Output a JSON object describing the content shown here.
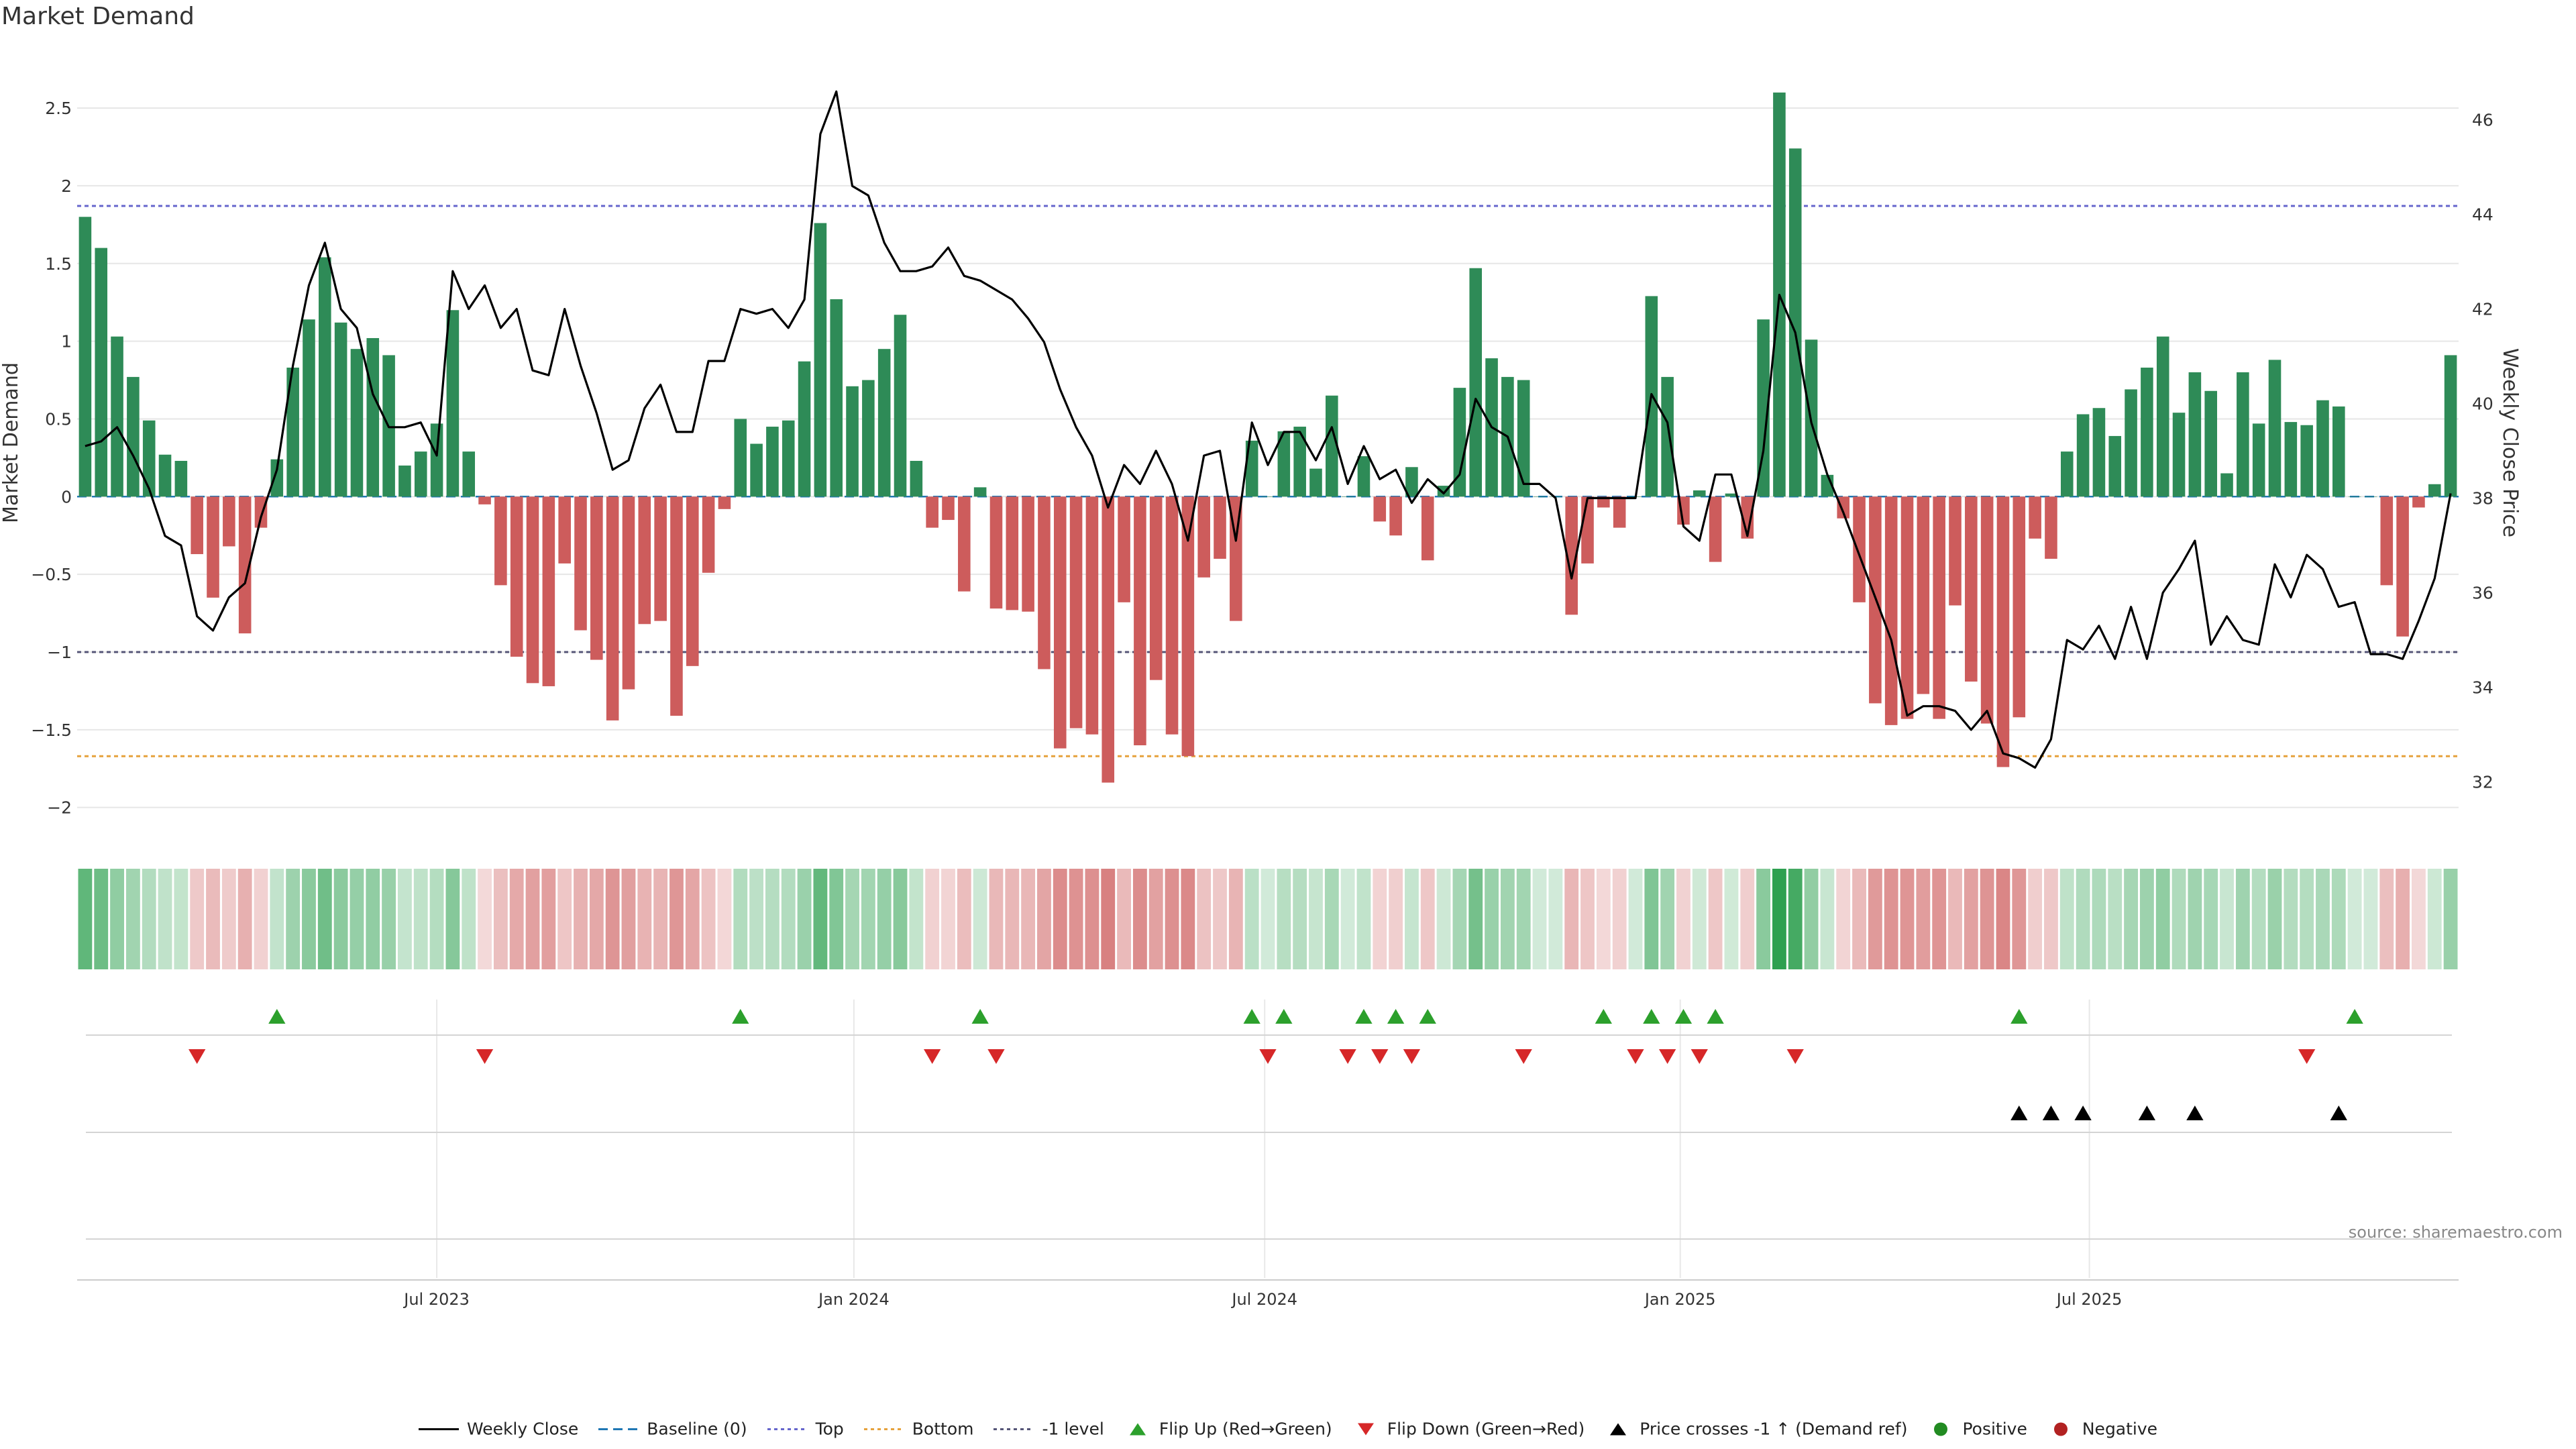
{
  "chart_data": {
    "type": "bar",
    "title": "Market Demand",
    "ylabel": "Market Demand",
    "y2label": "Weekly Close Price",
    "ylim": [
      -2.2,
      2.85
    ],
    "y2lim": [
      30.8,
      47.4
    ],
    "yticks": [
      "2.5",
      "2",
      "1.5",
      "1",
      "0.5",
      "0",
      "−0.5",
      "−1",
      "−1.5",
      "−2"
    ],
    "y2ticks": [
      "46",
      "44",
      "42",
      "40",
      "38",
      "36",
      "34",
      "32"
    ],
    "xticks": [
      "Jul 2023",
      "Jan 2024",
      "Jul 2024",
      "Jan 2025",
      "Jul 2025"
    ],
    "levels": {
      "top": 1.87,
      "bottom": -1.67,
      "minus_one": -1.0,
      "baseline": 0
    },
    "series": [
      {
        "name": "Market Demand",
        "values": [
          1.8,
          1.6,
          1.03,
          0.77,
          0.49,
          0.27,
          0.23,
          -0.37,
          -0.65,
          -0.32,
          -0.88,
          -0.2,
          0.24,
          0.83,
          1.14,
          1.54,
          1.12,
          0.95,
          1.02,
          0.91,
          0.2,
          0.29,
          0.47,
          1.2,
          0.29,
          -0.05,
          -0.57,
          -1.03,
          -1.2,
          -1.22,
          -0.43,
          -0.86,
          -1.05,
          -1.44,
          -1.24,
          -0.82,
          -0.8,
          -1.41,
          -1.09,
          -0.49,
          -0.08,
          0.5,
          0.34,
          0.45,
          0.49,
          0.87,
          1.76,
          1.27,
          0.71,
          0.75,
          0.95,
          1.17,
          0.23,
          -0.2,
          -0.15,
          -0.61,
          0.06,
          -0.72,
          -0.73,
          -0.74,
          -1.11,
          -1.62,
          -1.49,
          -1.53,
          -1.84,
          -0.68,
          -1.6,
          -1.18,
          -1.53,
          -1.67,
          -0.52,
          -0.4,
          -0.8,
          0.36,
          0.0,
          0.42,
          0.45,
          0.18,
          0.65,
          0.0,
          0.26,
          -0.16,
          -0.25,
          0.19,
          -0.41,
          0.07,
          0.7,
          1.47,
          0.89,
          0.77,
          0.75,
          0.0,
          0.0,
          -0.76,
          -0.43,
          -0.07,
          -0.2,
          0.0,
          1.29,
          0.77,
          -0.18,
          0.04,
          -0.42,
          0.02,
          -0.27,
          1.14,
          2.6,
          2.24,
          1.01,
          0.14,
          -0.14,
          -0.68,
          -1.33,
          -1.47,
          -1.43,
          -1.27,
          -1.43,
          -0.7,
          -1.19,
          -1.46,
          -1.74,
          -1.42,
          -0.27,
          -0.4,
          0.29,
          0.53,
          0.57,
          0.39,
          0.69,
          0.83,
          1.03,
          0.54,
          0.8,
          0.68,
          0.15,
          0.8,
          0.47,
          0.88,
          0.48,
          0.46,
          0.62,
          0.58,
          0.0,
          0.0,
          -0.57,
          -0.9,
          -0.07,
          0.08,
          0.91
        ]
      },
      {
        "name": "Weekly Close",
        "values": [
          39.1,
          39.2,
          39.5,
          38.9,
          38.2,
          37.2,
          37.0,
          35.5,
          35.2,
          35.9,
          36.2,
          37.6,
          38.6,
          40.8,
          42.5,
          43.4,
          42.0,
          41.6,
          40.2,
          39.5,
          39.5,
          39.6,
          38.9,
          42.8,
          42.0,
          42.5,
          41.6,
          42.0,
          40.7,
          40.6,
          42.0,
          40.8,
          39.8,
          38.6,
          38.8,
          39.9,
          40.4,
          39.4,
          39.4,
          40.9,
          40.9,
          42.0,
          41.9,
          42.0,
          41.6,
          42.2,
          45.7,
          46.6,
          44.6,
          44.4,
          43.4,
          42.8,
          42.8,
          42.9,
          43.3,
          42.7,
          42.6,
          42.4,
          42.2,
          41.8,
          41.3,
          40.3,
          39.5,
          38.9,
          37.8,
          38.7,
          38.3,
          39.0,
          38.3,
          37.1,
          38.9,
          39.0,
          37.1,
          39.6,
          38.7,
          39.4,
          39.4,
          38.8,
          39.5,
          38.3,
          39.1,
          38.4,
          38.6,
          37.9,
          38.4,
          38.1,
          38.5,
          40.1,
          39.5,
          39.3,
          38.3,
          38.3,
          38.0,
          36.3,
          38.0,
          38.0,
          38.0,
          38.0,
          40.2,
          39.6,
          37.4,
          37.1,
          38.5,
          38.5,
          37.2,
          39.0,
          42.3,
          41.5,
          39.6,
          38.5,
          37.7,
          36.8,
          35.9,
          35.0,
          33.4,
          33.6,
          33.6,
          33.5,
          33.1,
          33.5,
          32.6,
          32.5,
          32.3,
          32.9,
          35.0,
          34.8,
          35.3,
          34.6,
          35.7,
          34.6,
          36.0,
          36.5,
          37.1,
          34.9,
          35.5,
          35.0,
          34.9,
          36.6,
          35.9,
          36.8,
          36.5,
          35.7,
          35.8,
          34.7,
          34.7,
          34.6,
          35.4,
          36.3,
          38.1
        ]
      }
    ],
    "flip_up_weeks": [
      12,
      41,
      56,
      73,
      75,
      80,
      82,
      84,
      95,
      98,
      100,
      102,
      121,
      142
    ],
    "flip_down_weeks": [
      7,
      25,
      53,
      57,
      74,
      79,
      81,
      83,
      90,
      97,
      99,
      101,
      107,
      139
    ],
    "price_cross_weeks": [
      121,
      123,
      125,
      129,
      132,
      141
    ],
    "legend": [
      {
        "key": "close",
        "label": "Weekly Close"
      },
      {
        "key": "baseline",
        "label": "Baseline (0)"
      },
      {
        "key": "top",
        "label": "Top"
      },
      {
        "key": "bottom",
        "label": "Bottom"
      },
      {
        "key": "minus1",
        "label": "-1 level"
      },
      {
        "key": "flipup",
        "label": "Flip Up (Red→Green)"
      },
      {
        "key": "flipdown",
        "label": "Flip Down (Green→Red)"
      },
      {
        "key": "cross",
        "label": "Price crosses -1 ↑ (Demand ref)"
      },
      {
        "key": "positive",
        "label": "Positive"
      },
      {
        "key": "negative",
        "label": "Negative"
      }
    ],
    "source": "source: sharemaestro.com"
  },
  "colors": {
    "positive": "#2e8b57",
    "negative": "#cd5c5c",
    "top": "#6666cc",
    "bottom": "#e6a23c",
    "minus1": "#555577",
    "baseline": "#1f77b4",
    "flip_up": "#2ca02c",
    "flip_down": "#d62728",
    "cross": "#000000",
    "legend_positive": "#228b22",
    "legend_negative": "#b22222"
  }
}
